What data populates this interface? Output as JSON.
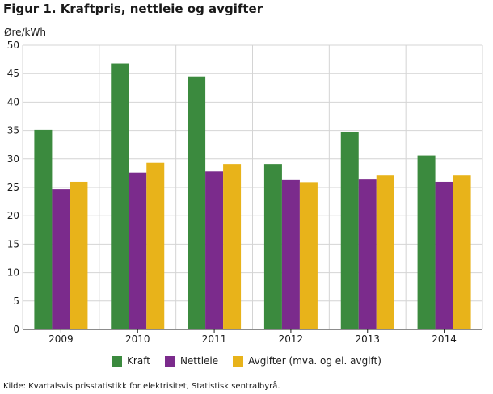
{
  "chart_data": {
    "type": "bar",
    "title": "Figur 1. Kraftpris, nettleie og avgifter",
    "ylabel": "Øre/kWh",
    "xlabel": "",
    "categories": [
      "2009",
      "2010",
      "2011",
      "2012",
      "2013",
      "2014"
    ],
    "ylim": [
      0,
      50
    ],
    "yticks": [
      0,
      5,
      10,
      15,
      20,
      25,
      30,
      35,
      40,
      45,
      50
    ],
    "grid": true,
    "legend_position": "bottom-center",
    "series": [
      {
        "name": "Kraft",
        "color": "#3b8a3e",
        "values": [
          35.1,
          46.8,
          44.5,
          29.1,
          34.8,
          30.6
        ]
      },
      {
        "name": "Nettleie",
        "color": "#7b2b8c",
        "values": [
          24.7,
          27.6,
          27.8,
          26.3,
          26.4,
          26.0
        ]
      },
      {
        "name": "Avgifter (mva. og el. avgift)",
        "color": "#e8b31a",
        "values": [
          26.0,
          29.3,
          29.1,
          25.8,
          27.1,
          27.1
        ]
      }
    ]
  },
  "source": "Kilde: Kvartalsvis prisstatistikk for elektrisitet, Statistisk sentralbyrå."
}
